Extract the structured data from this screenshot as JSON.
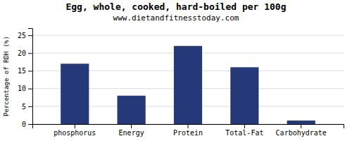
{
  "chart_data": {
    "type": "bar",
    "title": "Egg, whole, cooked, hard-boiled per 100g",
    "subtitle": "www.dietandfitnesstoday.com",
    "categories": [
      "phosphorus",
      "Energy",
      "Protein",
      "Total-Fat",
      "Carbohydrate"
    ],
    "values": [
      17,
      8,
      22,
      16,
      1
    ],
    "color": "#253878",
    "ylabel": "Percentage of RDH (%)",
    "ylim": [
      0,
      27
    ],
    "yticks": [
      0,
      5,
      10,
      15,
      20,
      25
    ],
    "grid": true
  }
}
